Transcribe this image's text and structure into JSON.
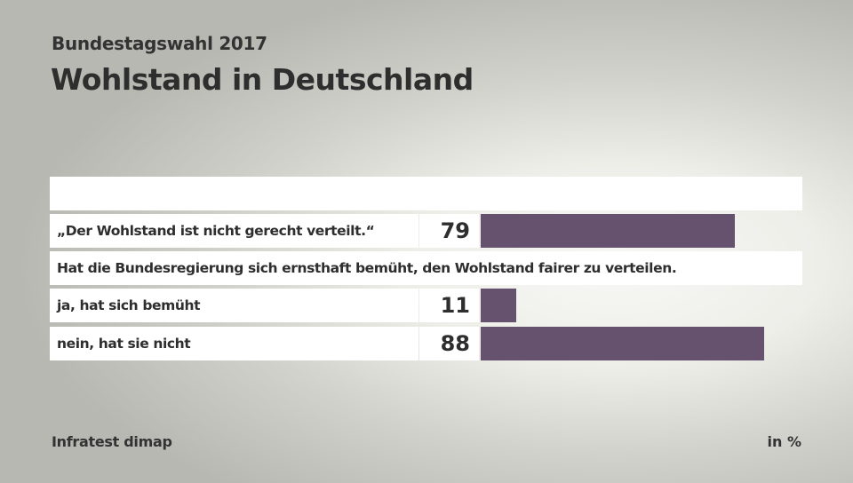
{
  "header": {
    "subtitle": "Bundestagswahl 2017",
    "title": "Wohlstand in Deutschland"
  },
  "footer": {
    "source": "Infratest dimap",
    "unit": "in %"
  },
  "colors": {
    "bar": "#66526f"
  },
  "chart_data": {
    "type": "bar",
    "orientation": "horizontal",
    "title": "Wohlstand in Deutschland",
    "subtitle": "Bundestagswahl 2017",
    "unit": "%",
    "groups": [
      {
        "heading": "",
        "categories": [
          "„Der Wohlstand ist nicht gerecht verteilt.“"
        ],
        "values": [
          79
        ]
      },
      {
        "heading": "Hat die Bundesregierung sich ernsthaft bemüht, den Wohlstand fairer zu verteilen.",
        "categories": [
          "ja, hat sich bemüht",
          "nein, hat sie nicht"
        ],
        "values": [
          11,
          88
        ]
      }
    ],
    "categories": [
      "„Der Wohlstand ist nicht gerecht verteilt.“",
      "ja, hat sich bemüht",
      "nein, hat sie nicht"
    ],
    "values": [
      79,
      11,
      88
    ],
    "xlim": [
      0,
      100
    ],
    "source": "Infratest dimap"
  }
}
